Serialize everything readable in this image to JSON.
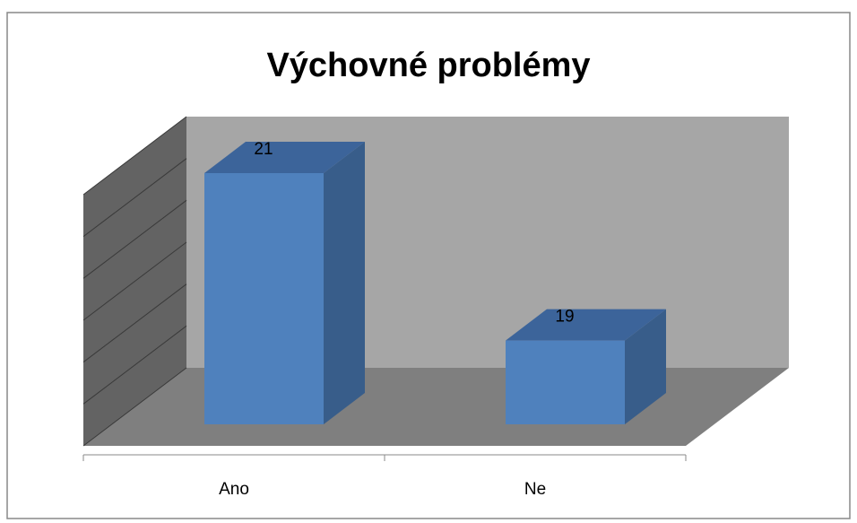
{
  "chart_data": {
    "type": "bar3d",
    "title": "Výchovné problémy",
    "categories": [
      "Ano",
      "Ne"
    ],
    "values": [
      21,
      19
    ],
    "color": "#4f81bd",
    "ylim": [
      18,
      21
    ],
    "yticks": [
      18,
      18.5,
      19,
      19.5,
      20,
      20.5,
      21
    ],
    "grid": true
  }
}
